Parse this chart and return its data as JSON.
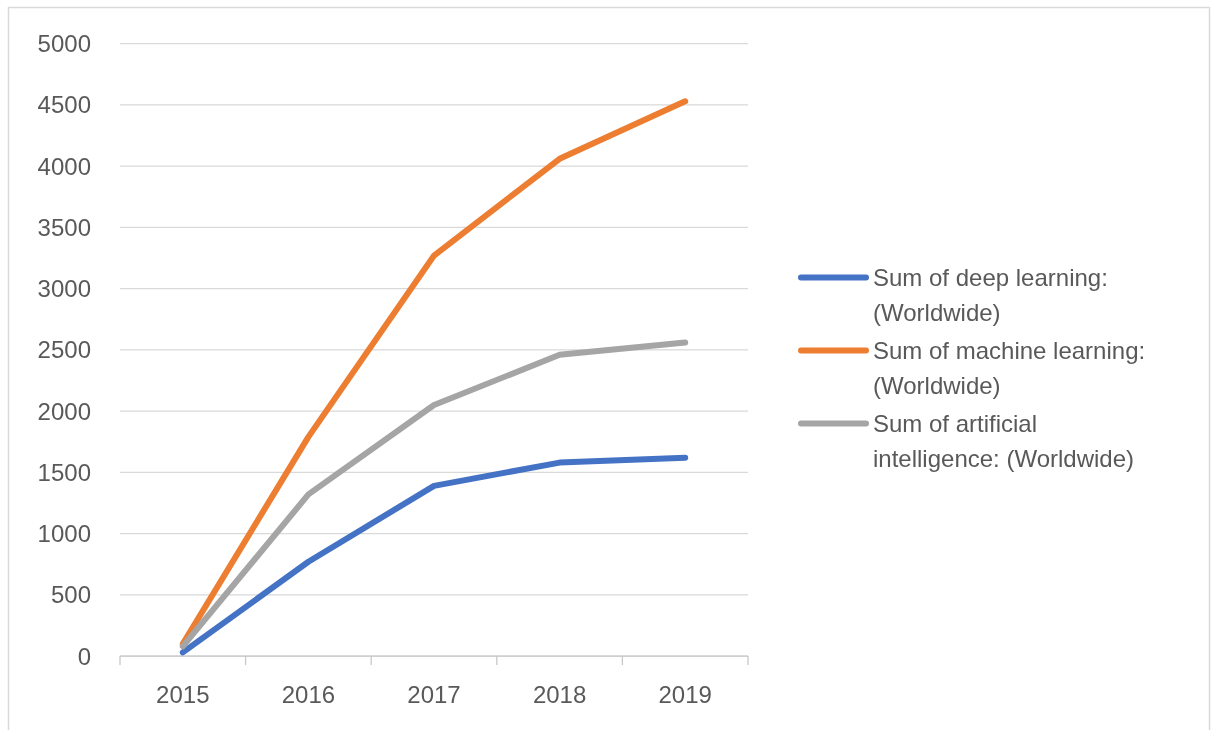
{
  "chart_data": {
    "type": "line",
    "categories": [
      "2015",
      "2016",
      "2017",
      "2018",
      "2019"
    ],
    "series": [
      {
        "name": "Sum of deep learning: (Worldwide)",
        "color": "#4472c4",
        "values": [
          30,
          770,
          1390,
          1580,
          1620
        ]
      },
      {
        "name": "Sum of machine learning: (Worldwide)",
        "color": "#ed7d31",
        "values": [
          100,
          1790,
          3270,
          4060,
          4530
        ]
      },
      {
        "name": "Sum of artificial intelligence: (Worldwide)",
        "color": "#a5a5a5",
        "values": [
          80,
          1320,
          2050,
          2460,
          2560
        ]
      }
    ],
    "ylim": [
      0,
      5000
    ],
    "yticks": [
      0,
      500,
      1000,
      1500,
      2000,
      2500,
      3000,
      3500,
      4000,
      4500,
      5000
    ],
    "grid": "y",
    "legend": "right"
  }
}
